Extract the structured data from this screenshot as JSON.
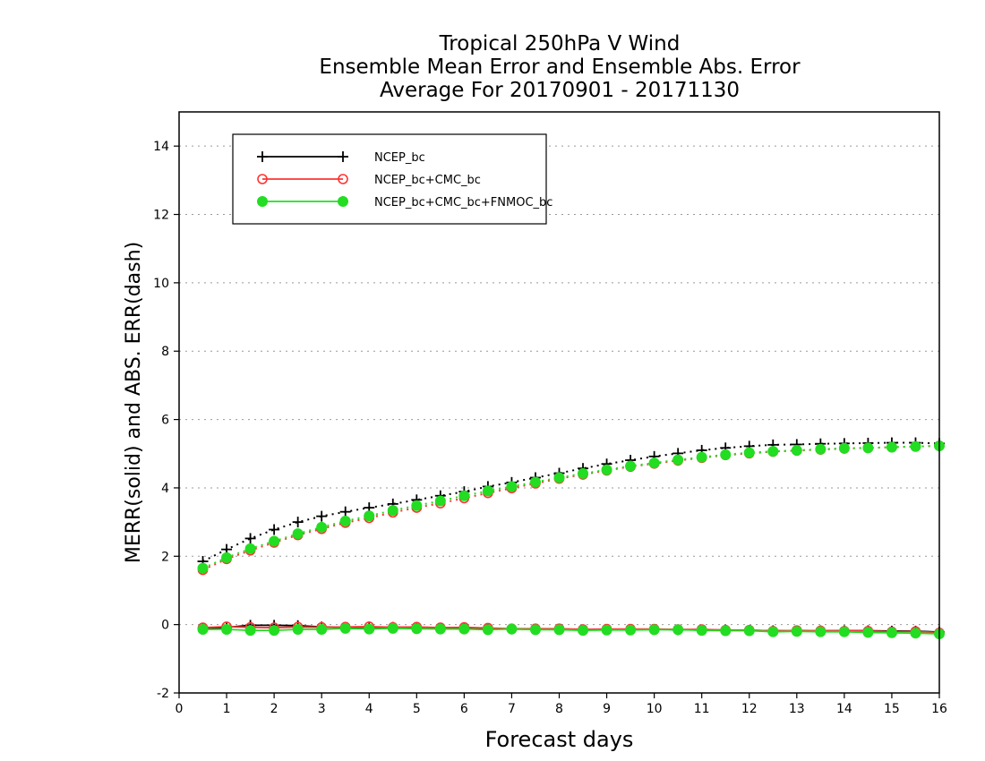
{
  "chart_data": {
    "type": "line",
    "title_lines": [
      "Tropical 250hPa V Wind",
      "Ensemble Mean Error and Ensemble Abs. Error",
      "Average For 20170901 - 20171130"
    ],
    "xlabel": "Forecast days",
    "ylabel": "MERR(solid) and ABS. ERR(dash)",
    "xlim": [
      0,
      16
    ],
    "ylim": [
      -2,
      15
    ],
    "xticks": [
      0,
      1,
      2,
      3,
      4,
      5,
      6,
      7,
      8,
      9,
      10,
      11,
      12,
      13,
      14,
      15,
      16
    ],
    "yticks": [
      -2,
      0,
      2,
      4,
      6,
      8,
      10,
      12,
      14
    ],
    "grid": "horizontal dotted",
    "legend_position": "top-left",
    "x": [
      0.5,
      1.0,
      1.5,
      2.0,
      2.5,
      3.0,
      3.5,
      4.0,
      4.5,
      5.0,
      5.5,
      6.0,
      6.5,
      7.0,
      7.5,
      8.0,
      8.5,
      9.0,
      9.5,
      10.0,
      10.5,
      11.0,
      11.5,
      12.0,
      12.5,
      13.0,
      13.5,
      14.0,
      14.5,
      15.0,
      15.5,
      16.0
    ],
    "series": [
      {
        "name": "NCEP_bc",
        "color": "#000000",
        "marker": "plus",
        "merr": [
          -0.12,
          -0.08,
          -0.02,
          -0.02,
          -0.03,
          -0.07,
          -0.08,
          -0.07,
          -0.08,
          -0.08,
          -0.1,
          -0.1,
          -0.13,
          -0.13,
          -0.14,
          -0.14,
          -0.15,
          -0.14,
          -0.14,
          -0.14,
          -0.15,
          -0.16,
          -0.16,
          -0.17,
          -0.18,
          -0.18,
          -0.18,
          -0.18,
          -0.18,
          -0.19,
          -0.19,
          -0.22
        ],
        "abs_err": [
          1.85,
          2.2,
          2.52,
          2.78,
          3.0,
          3.17,
          3.3,
          3.42,
          3.53,
          3.65,
          3.77,
          3.89,
          4.04,
          4.16,
          4.3,
          4.43,
          4.57,
          4.7,
          4.81,
          4.92,
          5.01,
          5.1,
          5.17,
          5.22,
          5.26,
          5.27,
          5.29,
          5.3,
          5.31,
          5.32,
          5.32,
          5.3
        ]
      },
      {
        "name": "NCEP_bc+CMC_bc",
        "color": "#ff3333",
        "marker": "open-circle",
        "merr": [
          -0.09,
          -0.06,
          -0.08,
          -0.09,
          -0.07,
          -0.08,
          -0.07,
          -0.06,
          -0.08,
          -0.07,
          -0.09,
          -0.08,
          -0.1,
          -0.12,
          -0.12,
          -0.12,
          -0.14,
          -0.13,
          -0.13,
          -0.13,
          -0.14,
          -0.14,
          -0.16,
          -0.16,
          -0.19,
          -0.17,
          -0.18,
          -0.19,
          -0.19,
          -0.21,
          -0.2,
          -0.24
        ],
        "abs_err": [
          1.6,
          1.92,
          2.17,
          2.4,
          2.62,
          2.8,
          2.98,
          3.12,
          3.28,
          3.42,
          3.55,
          3.7,
          3.85,
          3.99,
          4.13,
          4.27,
          4.39,
          4.51,
          4.62,
          4.71,
          4.8,
          4.88,
          4.96,
          5.01,
          5.06,
          5.09,
          5.12,
          5.15,
          5.17,
          5.19,
          5.21,
          5.23
        ]
      },
      {
        "name": "NCEP_bc+CMC_bc+FNMOC_bc",
        "color": "#22dd22",
        "marker": "filled-circle",
        "merr": [
          -0.14,
          -0.14,
          -0.17,
          -0.17,
          -0.14,
          -0.14,
          -0.11,
          -0.13,
          -0.11,
          -0.12,
          -0.13,
          -0.13,
          -0.15,
          -0.13,
          -0.15,
          -0.15,
          -0.17,
          -0.16,
          -0.16,
          -0.15,
          -0.15,
          -0.17,
          -0.18,
          -0.18,
          -0.21,
          -0.2,
          -0.21,
          -0.21,
          -0.23,
          -0.24,
          -0.25,
          -0.27
        ],
        "abs_err": [
          1.65,
          1.96,
          2.22,
          2.44,
          2.66,
          2.85,
          3.03,
          3.18,
          3.34,
          3.48,
          3.62,
          3.77,
          3.91,
          4.04,
          4.17,
          4.3,
          4.42,
          4.53,
          4.64,
          4.73,
          4.82,
          4.9,
          4.97,
          5.03,
          5.07,
          5.1,
          5.13,
          5.16,
          5.17,
          5.19,
          5.21,
          5.23
        ]
      }
    ]
  }
}
